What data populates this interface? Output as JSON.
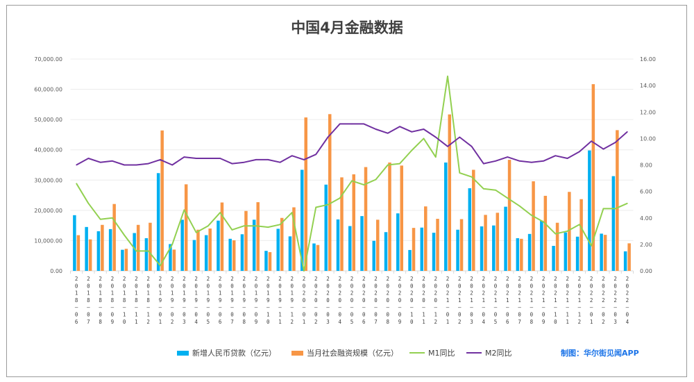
{
  "chart_data": {
    "type": "bar",
    "title": "中国4月金融数据",
    "categories": [
      "2018-06",
      "2018-07",
      "2018-08",
      "2018-09",
      "2018-10",
      "2018-11",
      "2018-12",
      "2019-01",
      "2019-02",
      "2019-03",
      "2019-04",
      "2019-05",
      "2019-06",
      "2019-07",
      "2019-08",
      "2019-09",
      "2019-10",
      "2019-11",
      "2019-12",
      "2020-01",
      "2020-02",
      "2020-03",
      "2020-04",
      "2020-05",
      "2020-06",
      "2020-07",
      "2020-08",
      "2020-09",
      "2020-10",
      "2020-11",
      "2020-12",
      "2021-01",
      "2021-02",
      "2021-03",
      "2021-04",
      "2021-05",
      "2021-06",
      "2021-07",
      "2021-08",
      "2021-09",
      "2021-10",
      "2021-11",
      "2021-12",
      "2022-01",
      "2022-02",
      "2022-03",
      "2022-04"
    ],
    "y_left": {
      "range": [
        0,
        70000
      ],
      "ticks": [
        "0.00",
        "10,000.00",
        "20,000.00",
        "30,000.00",
        "40,000.00",
        "50,000.00",
        "60,000.00",
        "70,000.00"
      ]
    },
    "y_right": {
      "range": [
        0,
        16
      ],
      "ticks": [
        "0.00",
        "2.00",
        "4.00",
        "6.00",
        "8.00",
        "10.00",
        "12.00",
        "14.00",
        "16.00"
      ]
    },
    "grid": true,
    "legend_position": "bottom",
    "series": [
      {
        "name": "新增人民币贷款（亿元）",
        "kind": "bar",
        "axis": "left",
        "color": "#00b0f0",
        "values": [
          18400,
          14500,
          13100,
          13800,
          6970,
          12500,
          10800,
          32300,
          8858,
          16900,
          10200,
          11800,
          16600,
          10600,
          12100,
          16900,
          6613,
          13900,
          11400,
          33400,
          9057,
          28500,
          17000,
          14800,
          18100,
          9927,
          12800,
          19000,
          6898,
          14300,
          12600,
          35800,
          13600,
          27300,
          14700,
          15000,
          21200,
          10800,
          12200,
          16600,
          8262,
          12700,
          11300,
          39800,
          12300,
          31300,
          6454
        ]
      },
      {
        "name": "当月社会融资规模（亿元）",
        "kind": "bar",
        "axis": "left",
        "color": "#f79646",
        "values": [
          11800,
          10400,
          15200,
          22100,
          7288,
          15200,
          15900,
          46400,
          7030,
          28600,
          13600,
          14000,
          22600,
          10100,
          19800,
          22700,
          6189,
          17500,
          21000,
          50700,
          8554,
          51800,
          30900,
          31900,
          34300,
          16900,
          35800,
          34800,
          14200,
          21300,
          17200,
          51700,
          17100,
          33400,
          18500,
          19200,
          36700,
          10600,
          29600,
          24800,
          15900,
          26100,
          23700,
          61700,
          11900,
          46500,
          9102
        ]
      },
      {
        "name": "M1同比",
        "kind": "line",
        "axis": "right",
        "color": "#92d050",
        "values": [
          6.6,
          5.1,
          3.9,
          4.0,
          2.7,
          1.5,
          1.5,
          0.4,
          2.0,
          4.6,
          2.9,
          3.4,
          4.4,
          3.1,
          3.4,
          3.4,
          3.3,
          3.5,
          4.4,
          0.0,
          4.8,
          5.0,
          5.5,
          6.8,
          6.5,
          6.9,
          8.0,
          8.1,
          9.1,
          10.0,
          8.6,
          14.7,
          7.4,
          7.1,
          6.2,
          6.1,
          5.5,
          4.9,
          4.2,
          3.7,
          2.8,
          3.0,
          3.5,
          1.9,
          4.7,
          4.7,
          5.1
        ]
      },
      {
        "name": "M2同比",
        "kind": "line",
        "axis": "right",
        "color": "#7030a0",
        "values": [
          8.0,
          8.5,
          8.2,
          8.3,
          8.0,
          8.0,
          8.1,
          8.4,
          8.0,
          8.6,
          8.5,
          8.5,
          8.5,
          8.1,
          8.2,
          8.4,
          8.4,
          8.2,
          8.7,
          8.4,
          8.8,
          10.1,
          11.1,
          11.1,
          11.1,
          10.7,
          10.4,
          10.9,
          10.5,
          10.7,
          10.1,
          9.4,
          10.1,
          9.4,
          8.1,
          8.3,
          8.6,
          8.3,
          8.2,
          8.3,
          8.7,
          8.5,
          9.0,
          9.8,
          9.2,
          9.7,
          10.5
        ]
      }
    ],
    "credit": "制图：华尔街见闻APP"
  }
}
